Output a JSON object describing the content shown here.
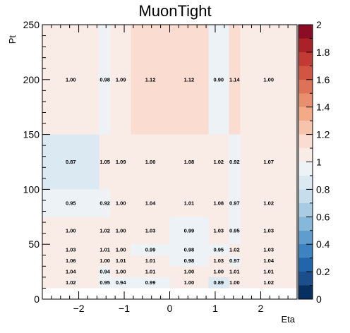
{
  "chart_data": {
    "type": "heatmap",
    "title": "MuonTight",
    "xlabel": "Eta",
    "ylabel": "Pt",
    "xlim": [
      -2.8,
      2.8
    ],
    "ylim": [
      0,
      250
    ],
    "zlim": [
      0,
      2
    ],
    "x_ticks": [
      -2,
      -1,
      0,
      1,
      2
    ],
    "x_tick_labels": [
      "−2",
      "−1",
      "0",
      "1",
      "2"
    ],
    "y_ticks": [
      0,
      50,
      100,
      150,
      200,
      250
    ],
    "y_tick_labels": [
      "0",
      "50",
      "100",
      "150",
      "200",
      "250"
    ],
    "z_ticks": [
      0,
      0.2,
      0.4,
      0.6,
      0.8,
      1,
      1.2,
      1.4,
      1.6,
      1.8,
      2
    ],
    "z_tick_labels": [
      "0",
      "0.2",
      "0.4",
      "0.6",
      "0.8",
      "1",
      "1.2",
      "1.4",
      "1.6",
      "1.8",
      "2"
    ],
    "x_bin_edges": [
      -2.8,
      -1.55,
      -1.3,
      -0.85,
      0,
      0.85,
      1.3,
      1.55,
      2.8
    ],
    "y_bin_edges": [
      10,
      20,
      30,
      40,
      50,
      75,
      100,
      150,
      250
    ],
    "values": [
      [
        1.02,
        0.95,
        0.94,
        0.99,
        1.0,
        0.89,
        1.0,
        1.02
      ],
      [
        1.04,
        0.94,
        1.0,
        1.01,
        1.0,
        1.0,
        1.01,
        1.01
      ],
      [
        1.06,
        1.0,
        1.01,
        1.01,
        0.98,
        1.03,
        0.97,
        1.04
      ],
      [
        1.03,
        1.01,
        1.0,
        0.99,
        0.98,
        0.95,
        1.02,
        1.03
      ],
      [
        1.0,
        1.02,
        1.0,
        1.03,
        0.99,
        1.03,
        0.95,
        1.03
      ],
      [
        0.95,
        0.92,
        1.0,
        1.04,
        1.01,
        1.08,
        0.97,
        1.02
      ],
      [
        0.87,
        1.05,
        1.09,
        1.0,
        1.08,
        1.02,
        0.92,
        1.07
      ],
      [
        1.0,
        0.98,
        1.09,
        1.12,
        1.12,
        0.9,
        1.14,
        1.0
      ]
    ],
    "value_labels": [
      [
        "1.02",
        "0.95",
        "0.94",
        "0.99",
        "1.00",
        "0.89",
        "1.00",
        "1.02"
      ],
      [
        "1.04",
        "0.94",
        "1.00",
        "1.01",
        "1.00",
        "1.00",
        "1.01",
        "1.01"
      ],
      [
        "1.06",
        "1.00",
        "1.01",
        "1.01",
        "0.98",
        "1.03",
        "0.97",
        "1.04"
      ],
      [
        "1.03",
        "1.01",
        "1.00",
        "0.99",
        "0.98",
        "0.95",
        "1.02",
        "1.03"
      ],
      [
        "1.00",
        "1.02",
        "1.00",
        "1.03",
        "0.99",
        "1.03",
        "0.95",
        "1.03"
      ],
      [
        "0.95",
        "0.92",
        "1.00",
        "1.04",
        "1.01",
        "1.08",
        "0.97",
        "1.02"
      ],
      [
        "0.87",
        "1.05",
        "1.09",
        "1.00",
        "1.08",
        "1.02",
        "0.92",
        "1.07"
      ],
      [
        "1.00",
        "0.98",
        "1.09",
        "1.12",
        "1.12",
        "0.90",
        "1.14",
        "1.00"
      ]
    ],
    "palette_colors": [
      "#053061",
      "#1a4f8c",
      "#2166ac",
      "#3d83bf",
      "#5f9dcc",
      "#86b8d9",
      "#a8cde3",
      "#c6deec",
      "#dbe9f2",
      "#ecf2f6",
      "#f9ece6",
      "#fadcd0",
      "#f7c3aa",
      "#f4a987",
      "#e98e6e",
      "#de7257",
      "#d25443",
      "#c23a33",
      "#ab2128",
      "#8d0c25"
    ]
  }
}
